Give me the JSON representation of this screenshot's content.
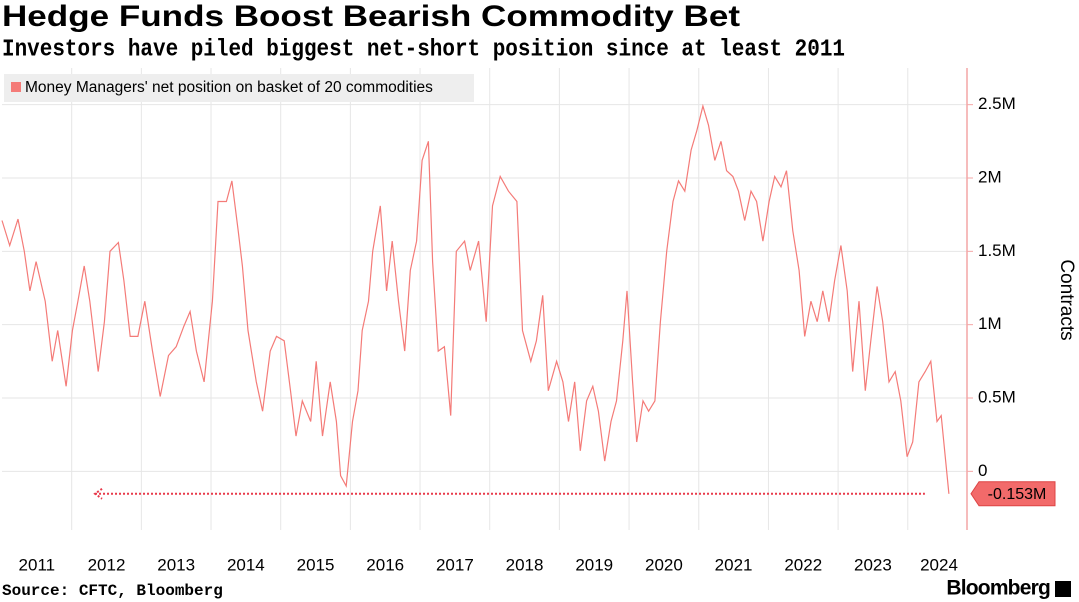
{
  "chart_data": {
    "type": "line",
    "title": "Hedge Funds Boost Bearish Commodity Bet",
    "subtitle": "Investors have piled biggest net-short position since at least 2011",
    "y_axis_label": "Contracts",
    "source": "Source: CFTC, Bloomberg",
    "brand": "Bloomberg",
    "legend": "top-left",
    "grid": true,
    "x": [
      2011.0,
      2011.11,
      2011.23,
      2011.32,
      2011.4,
      2011.49,
      2011.62,
      2011.72,
      2011.8,
      2011.92,
      2012.01,
      2012.09,
      2012.18,
      2012.26,
      2012.38,
      2012.47,
      2012.55,
      2012.67,
      2012.75,
      2012.84,
      2012.95,
      2013.05,
      2013.16,
      2013.27,
      2013.39,
      2013.5,
      2013.61,
      2013.7,
      2013.79,
      2013.9,
      2014.02,
      2014.1,
      2014.22,
      2014.3,
      2014.39,
      2014.45,
      2014.53,
      2014.65,
      2014.74,
      2014.85,
      2014.94,
      2015.05,
      2015.14,
      2015.22,
      2015.31,
      2015.43,
      2015.51,
      2015.6,
      2015.71,
      2015.8,
      2015.86,
      2015.94,
      2016.03,
      2016.11,
      2016.17,
      2016.26,
      2016.32,
      2016.43,
      2016.52,
      2016.6,
      2016.69,
      2016.78,
      2016.86,
      2016.95,
      2017.03,
      2017.12,
      2017.18,
      2017.26,
      2017.35,
      2017.44,
      2017.52,
      2017.64,
      2017.72,
      2017.84,
      2017.95,
      2018.04,
      2018.15,
      2018.27,
      2018.39,
      2018.47,
      2018.59,
      2018.67,
      2018.76,
      2018.84,
      2018.96,
      2019.05,
      2019.13,
      2019.22,
      2019.3,
      2019.39,
      2019.48,
      2019.56,
      2019.65,
      2019.74,
      2019.82,
      2019.91,
      2019.97,
      2020.05,
      2020.11,
      2020.2,
      2020.28,
      2020.37,
      2020.45,
      2020.54,
      2020.63,
      2020.71,
      2020.8,
      2020.89,
      2020.97,
      2021.06,
      2021.14,
      2021.23,
      2021.32,
      2021.4,
      2021.49,
      2021.57,
      2021.66,
      2021.75,
      2021.83,
      2021.92,
      2022.01,
      2022.09,
      2022.18,
      2022.26,
      2022.35,
      2022.44,
      2022.52,
      2022.61,
      2022.7,
      2022.78,
      2022.87,
      2022.95,
      2023.04,
      2023.13,
      2023.21,
      2023.3,
      2023.39,
      2023.47,
      2023.56,
      2023.64,
      2023.73,
      2023.82,
      2023.9,
      2023.99,
      2024.07,
      2024.16,
      2024.25,
      2024.33,
      2024.42,
      2024.48,
      2024.59
    ],
    "series": [
      {
        "name": "Money Managers' net position on basket of 20 commodities",
        "color": "#f47b78",
        "values": [
          1710000,
          1540000,
          1720000,
          1500000,
          1230000,
          1430000,
          1160000,
          750000,
          960000,
          580000,
          960000,
          1160000,
          1400000,
          1160000,
          680000,
          1020000,
          1500000,
          1560000,
          1300000,
          920000,
          920000,
          1160000,
          820000,
          510000,
          790000,
          850000,
          990000,
          1090000,
          820000,
          610000,
          1160000,
          1840000,
          1840000,
          1980000,
          1640000,
          1400000,
          960000,
          610000,
          410000,
          820000,
          920000,
          890000,
          550000,
          240000,
          480000,
          340000,
          750000,
          240000,
          610000,
          340000,
          -30000,
          -100000,
          340000,
          550000,
          960000,
          1160000,
          1500000,
          1810000,
          1230000,
          1570000,
          1160000,
          820000,
          1370000,
          1570000,
          2120000,
          2250000,
          1430000,
          820000,
          850000,
          380000,
          1500000,
          1570000,
          1370000,
          1570000,
          1020000,
          1810000,
          2010000,
          1910000,
          1840000,
          960000,
          750000,
          890000,
          1200000,
          550000,
          750000,
          610000,
          340000,
          610000,
          140000,
          480000,
          580000,
          410000,
          70000,
          340000,
          480000,
          890000,
          1230000,
          610000,
          200000,
          480000,
          410000,
          480000,
          1020000,
          1500000,
          1840000,
          1980000,
          1910000,
          2190000,
          2320000,
          2490000,
          2360000,
          2120000,
          2250000,
          2050000,
          2010000,
          1910000,
          1710000,
          1910000,
          1840000,
          1570000,
          1840000,
          2010000,
          1940000,
          2050000,
          1640000,
          1370000,
          920000,
          1160000,
          1020000,
          1230000,
          1020000,
          1300000,
          1540000,
          1230000,
          680000,
          1160000,
          550000,
          890000,
          1260000,
          1020000,
          610000,
          680000,
          480000,
          100000,
          200000,
          610000,
          680000,
          750000,
          340000,
          380000,
          -153000
        ],
        "value_labels": [
          null,
          null,
          null,
          null,
          null,
          null,
          null,
          null,
          null,
          null,
          null,
          null,
          null,
          null,
          null,
          null,
          null,
          null,
          null,
          null,
          null,
          null,
          null,
          null,
          null,
          null,
          null,
          null,
          null,
          null,
          null,
          null,
          null,
          null,
          null,
          null,
          null,
          null,
          null,
          null,
          null,
          null,
          null,
          null,
          null,
          null,
          null,
          null,
          null,
          null,
          null,
          null,
          null,
          null,
          null,
          null,
          null,
          null,
          null,
          null,
          null,
          null,
          null,
          null,
          null,
          null,
          null,
          null,
          null,
          null,
          null,
          null,
          null,
          null,
          null,
          null,
          null,
          null,
          null,
          null,
          null,
          null,
          null,
          null,
          null,
          null,
          null,
          null,
          null,
          null,
          null,
          null,
          null,
          null,
          null,
          null,
          null,
          null,
          null,
          null,
          null,
          null,
          null,
          null,
          null,
          null,
          null,
          null,
          null,
          null,
          null,
          null,
          null,
          null,
          null,
          null,
          null,
          null,
          null,
          null,
          null,
          null,
          null,
          null,
          null,
          null,
          null,
          null,
          null,
          null,
          null,
          null,
          null,
          null,
          null,
          null,
          null,
          null,
          null,
          null,
          null,
          null,
          null,
          null,
          null,
          null,
          null,
          null,
          null,
          null,
          "-0.153M"
        ]
      }
    ],
    "xlim": [
      2011,
      2024.85
    ],
    "xticks": [
      2011,
      2012,
      2013,
      2014,
      2015,
      2016,
      2017,
      2018,
      2019,
      2020,
      2021,
      2022,
      2023,
      2024
    ],
    "ylim": [
      -400000,
      2750000
    ],
    "yticks": [
      0,
      {
        "value": 500000,
        "label": "0.5M"
      },
      {
        "value": 1000000,
        "label": "1M"
      },
      {
        "value": 1500000,
        "label": "1.5M"
      },
      {
        "value": 2000000,
        "label": "2M"
      },
      {
        "value": 2500000,
        "label": "2.5M"
      }
    ]
  }
}
